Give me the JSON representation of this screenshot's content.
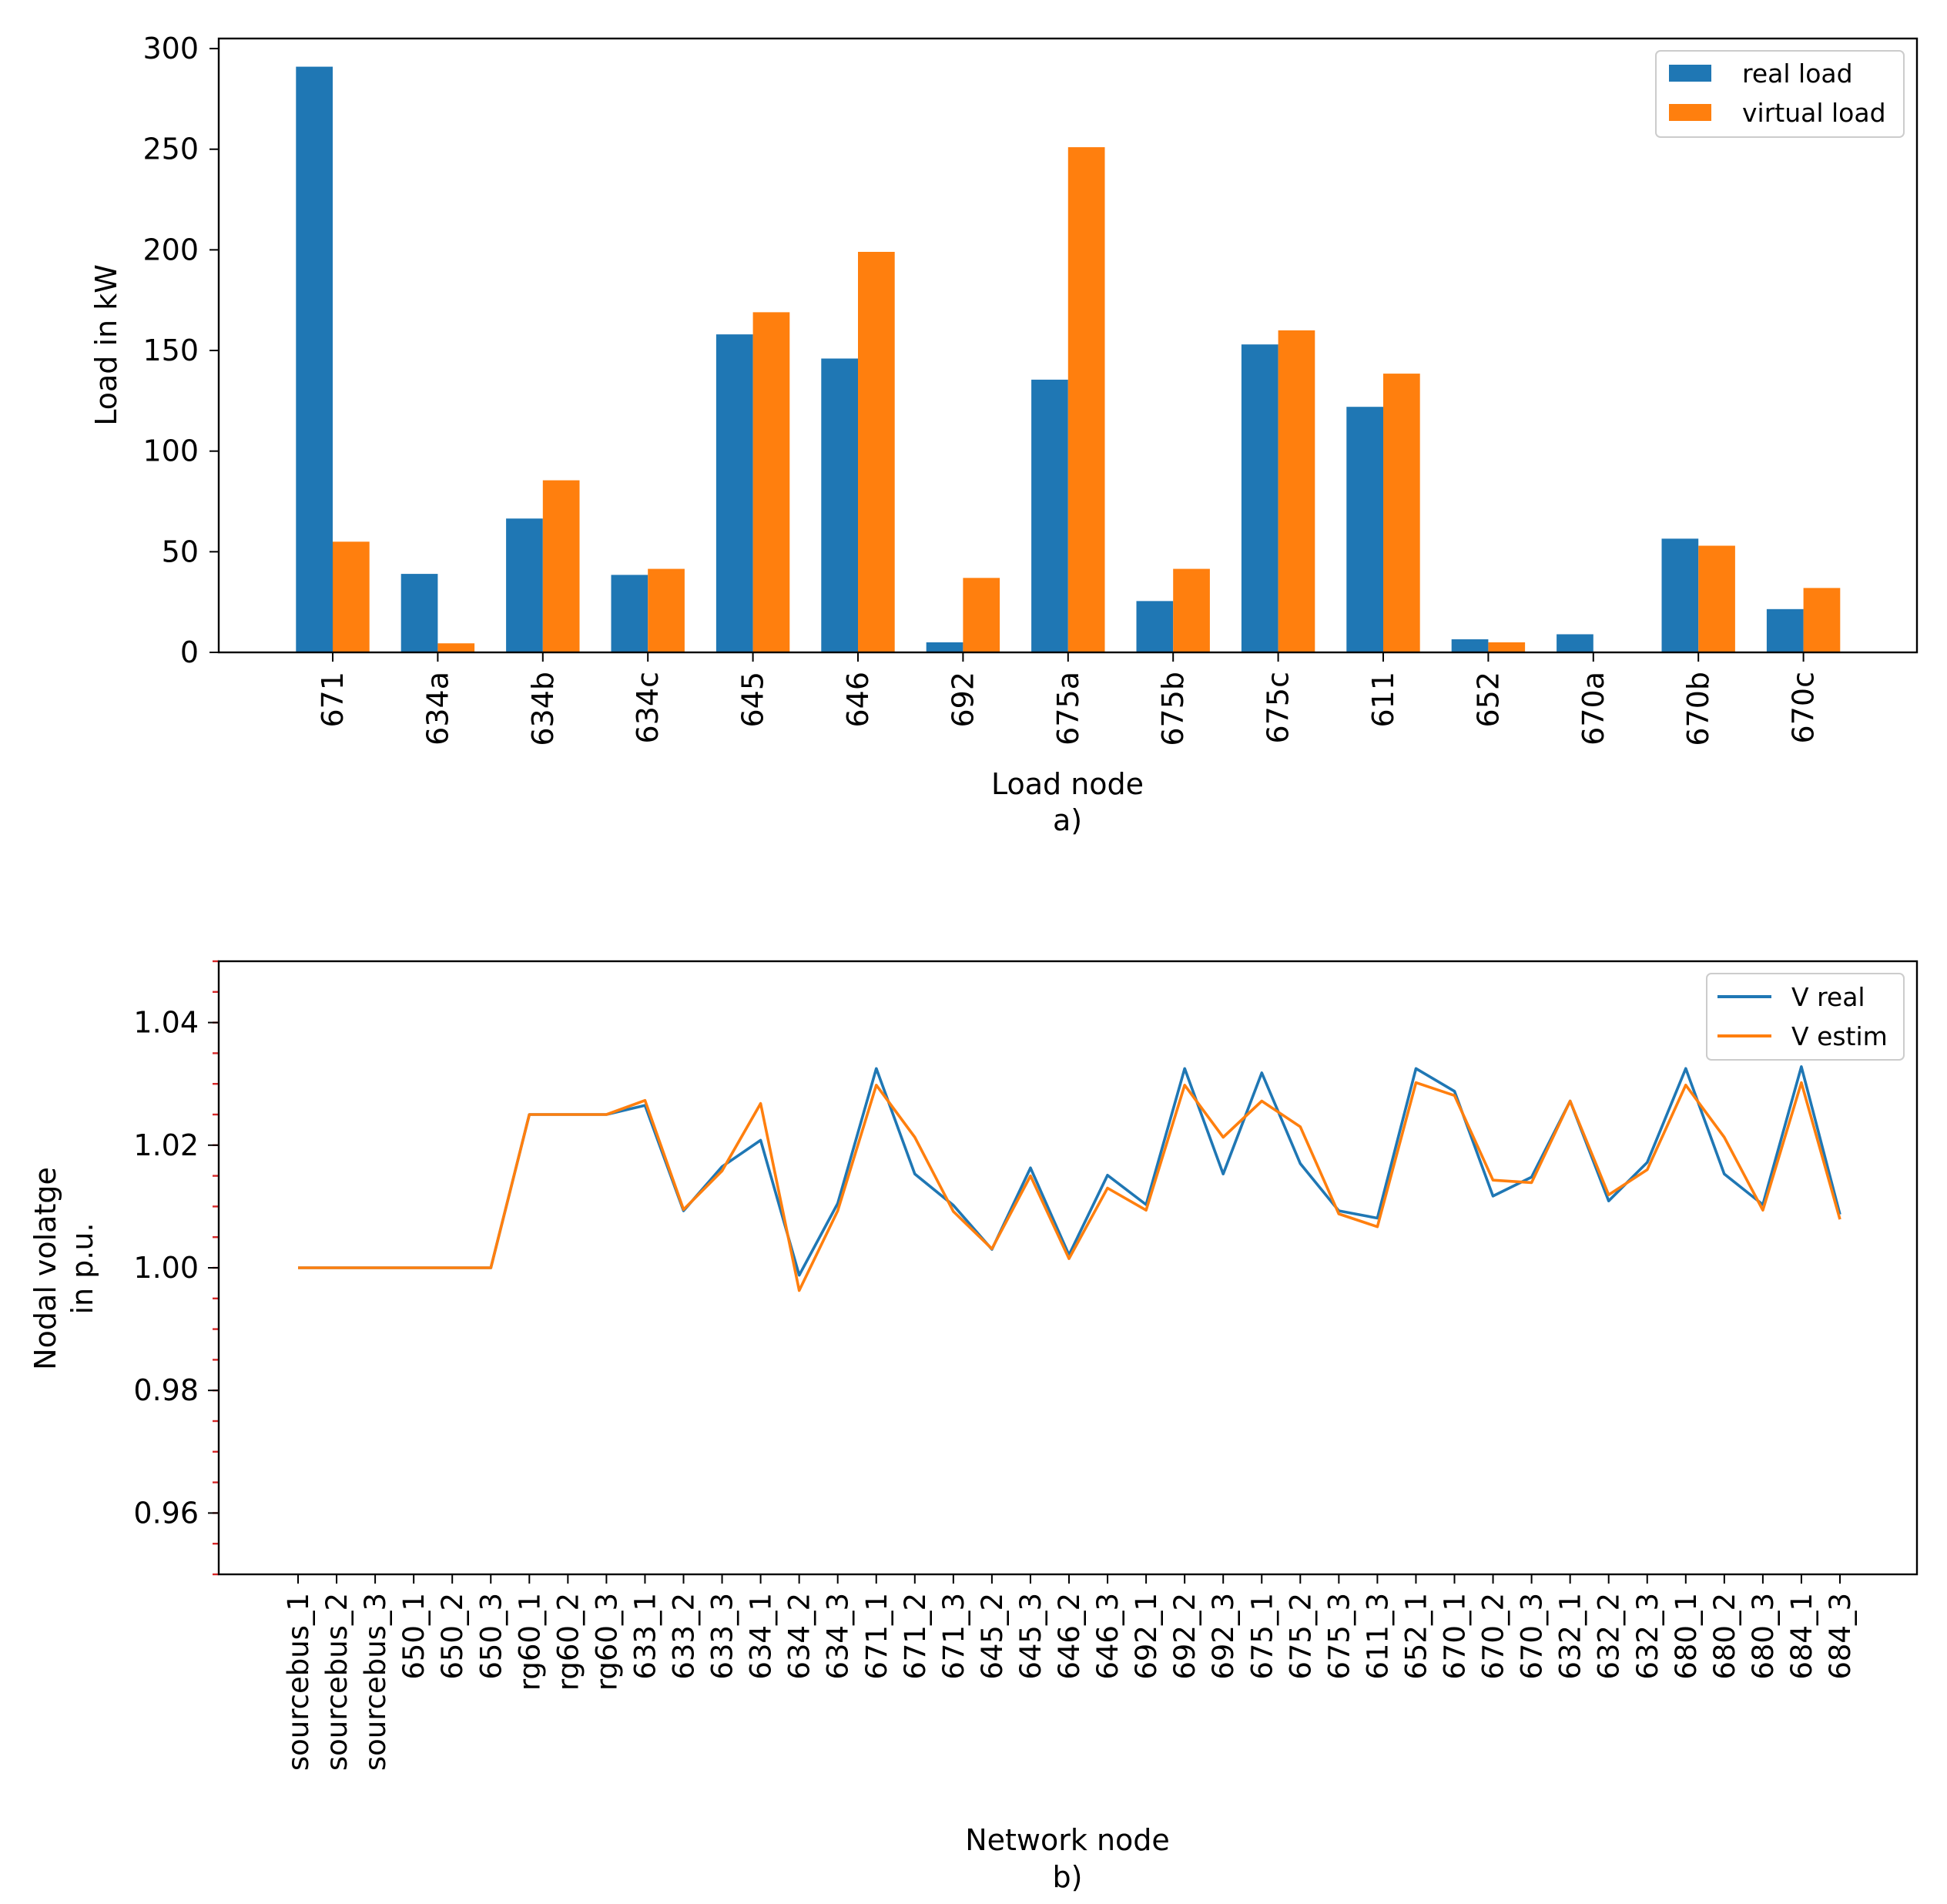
{
  "colors": {
    "real": "#1f77b4",
    "virtual": "#ff7f0e",
    "minor_tick": "#d62728",
    "axes": "#000000"
  },
  "chart_data": [
    {
      "type": "bar",
      "panel_label": "a)",
      "xlabel": "Load node",
      "ylabel": "Load in kW",
      "ylim": [
        0,
        305
      ],
      "yticks": [
        0,
        50,
        100,
        150,
        200,
        250,
        300
      ],
      "categories": [
        "671",
        "634a",
        "634b",
        "634c",
        "645",
        "646",
        "692",
        "675a",
        "675b",
        "675c",
        "611",
        "652",
        "670a",
        "670b",
        "670c"
      ],
      "series": [
        {
          "name": "real load",
          "values": [
            291,
            39,
            66.5,
            38.5,
            158,
            146,
            5,
            135.5,
            25.5,
            153,
            122,
            6.5,
            9,
            56.5,
            21.5
          ]
        },
        {
          "name": "virtual load",
          "values": [
            55,
            4.5,
            85.5,
            41.5,
            169,
            199,
            37,
            251,
            41.5,
            160,
            138.5,
            5,
            0,
            53,
            32
          ]
        }
      ],
      "legend": [
        "real load",
        "virtual load"
      ],
      "legend_position": "top-right"
    },
    {
      "type": "line",
      "panel_label": "b)",
      "xlabel": "Network node",
      "ylabel_lines": [
        "Nodal volatge",
        "in p.u."
      ],
      "ylim": [
        0.95,
        1.05
      ],
      "yticks": [
        "0.96",
        "0.98",
        "1.00",
        "1.02",
        "1.04"
      ],
      "ytick_values": [
        0.96,
        0.98,
        1.0,
        1.02,
        1.04
      ],
      "categories": [
        "sourcebus_1",
        "sourcebus_2",
        "sourcebus_3",
        "650_1",
        "650_2",
        "650_3",
        "rg60_1",
        "rg60_2",
        "rg60_3",
        "633_1",
        "633_2",
        "633_3",
        "634_1",
        "634_2",
        "634_3",
        "671_1",
        "671_2",
        "671_3",
        "645_2",
        "645_3",
        "646_2",
        "646_3",
        "692_1",
        "692_2",
        "692_3",
        "675_1",
        "675_2",
        "675_3",
        "611_3",
        "652_1",
        "670_1",
        "670_2",
        "670_3",
        "632_1",
        "632_2",
        "632_3",
        "680_1",
        "680_2",
        "680_3",
        "684_1",
        "684_3"
      ],
      "series": [
        {
          "name": "V real",
          "values": [
            1.0,
            1.0,
            1.0,
            1.0,
            1.0,
            1.0,
            1.025,
            1.025,
            1.025,
            1.0265,
            1.0093,
            1.0165,
            1.0208,
            0.9988,
            1.0105,
            1.0325,
            1.0153,
            1.0102,
            1.003,
            1.0163,
            1.0021,
            1.0151,
            1.0103,
            1.0325,
            1.0153,
            1.0318,
            1.017,
            1.0093,
            1.0081,
            1.0325,
            1.0288,
            1.0117,
            1.0148,
            1.0272,
            1.0109,
            1.0172,
            1.0325,
            1.0153,
            1.0103,
            1.0328,
            1.0087
          ]
        },
        {
          "name": "V estim",
          "values": [
            1.0,
            1.0,
            1.0,
            1.0,
            1.0,
            1.0,
            1.025,
            1.025,
            1.025,
            1.0273,
            1.0095,
            1.0158,
            1.0268,
            0.9963,
            1.0093,
            1.0298,
            1.0213,
            1.0092,
            1.0031,
            1.015,
            1.0015,
            1.013,
            1.0094,
            1.0298,
            1.0213,
            1.0272,
            1.023,
            1.0088,
            1.0067,
            1.0302,
            1.0281,
            1.0143,
            1.0139,
            1.0272,
            1.0119,
            1.016,
            1.0298,
            1.0213,
            1.0094,
            1.0302,
            1.0079
          ]
        }
      ],
      "legend": [
        "V real",
        "V estim"
      ],
      "legend_position": "top-right"
    }
  ]
}
